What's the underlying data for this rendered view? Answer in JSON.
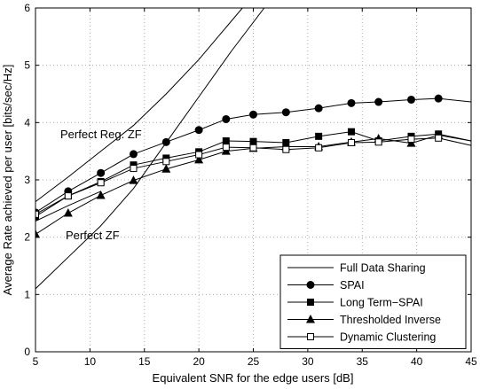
{
  "chart_data": {
    "type": "line",
    "title": "",
    "xlabel": "Equivalent SNR for the edge users [dB]",
    "ylabel": "Average Rate achieved per user [bits/sec/Hz]",
    "xlim": [
      5,
      45
    ],
    "ylim": [
      0,
      6
    ],
    "xticks": [
      5,
      10,
      15,
      20,
      25,
      30,
      35,
      40,
      45
    ],
    "yticks": [
      0,
      1,
      2,
      3,
      4,
      5,
      6
    ],
    "grid": true,
    "legend_position": "bottom-right",
    "annotations": [
      "Perfect Reg. ZF",
      "Perfect ZF"
    ],
    "series": [
      {
        "name": "Full Data Sharing",
        "marker": "none",
        "line_group": "fds-reg",
        "x": [
          5,
          8,
          11,
          14,
          17,
          20,
          22,
          24
        ],
        "y": [
          2.62,
          3.05,
          3.5,
          3.95,
          4.5,
          5.1,
          5.55,
          6.0
        ]
      },
      {
        "name": "Full Data Sharing",
        "marker": "none",
        "line_group": "fds-zf",
        "x": [
          5,
          8,
          11,
          14,
          17,
          20,
          23,
          26
        ],
        "y": [
          1.1,
          1.65,
          2.2,
          2.85,
          3.65,
          4.45,
          5.25,
          6.0
        ]
      },
      {
        "name": "Full Data Sharing",
        "marker": "none",
        "line_group": "fds-short",
        "x": [
          5,
          8,
          11
        ],
        "y": [
          2.28,
          2.55,
          2.8
        ]
      },
      {
        "name": "SPAI",
        "marker": "circle",
        "x": [
          5,
          8,
          11,
          14,
          17,
          20,
          22.5,
          25,
          28,
          31,
          34,
          36.5,
          39.5,
          42,
          45
        ],
        "y": [
          2.43,
          2.8,
          3.12,
          3.45,
          3.66,
          3.87,
          4.06,
          4.14,
          4.18,
          4.25,
          4.34,
          4.36,
          4.4,
          4.42,
          4.36
        ]
      },
      {
        "name": "Long Term−SPAI",
        "marker": "square",
        "x": [
          5,
          8,
          11,
          14,
          17,
          20,
          22.5,
          25,
          28,
          31,
          34,
          36.5,
          39.5,
          42,
          45
        ],
        "y": [
          2.36,
          2.72,
          2.97,
          3.26,
          3.38,
          3.49,
          3.68,
          3.67,
          3.65,
          3.76,
          3.84,
          3.68,
          3.76,
          3.8,
          3.68
        ]
      },
      {
        "name": "Thresholded Inverse",
        "marker": "triangle",
        "x": [
          5,
          8,
          11,
          14,
          17,
          20,
          22.5,
          25,
          28,
          31,
          34,
          36.5,
          39.5,
          42,
          45
        ],
        "y": [
          2.05,
          2.42,
          2.73,
          2.99,
          3.19,
          3.35,
          3.5,
          3.55,
          3.58,
          3.58,
          3.66,
          3.72,
          3.64,
          3.78,
          3.68
        ]
      },
      {
        "name": "Dynamic Clustering",
        "marker": "open-square",
        "x": [
          5,
          8,
          11,
          14,
          17,
          20,
          22.5,
          25,
          28,
          31,
          34,
          36.5,
          39.5,
          42,
          45
        ],
        "y": [
          2.4,
          2.72,
          2.95,
          3.2,
          3.32,
          3.44,
          3.57,
          3.56,
          3.53,
          3.56,
          3.65,
          3.66,
          3.71,
          3.73,
          3.6
        ]
      }
    ],
    "legend_order": [
      "Full Data Sharing",
      "SPAI",
      "Long Term−SPAI",
      "Thresholded Inverse",
      "Dynamic Clustering"
    ]
  }
}
